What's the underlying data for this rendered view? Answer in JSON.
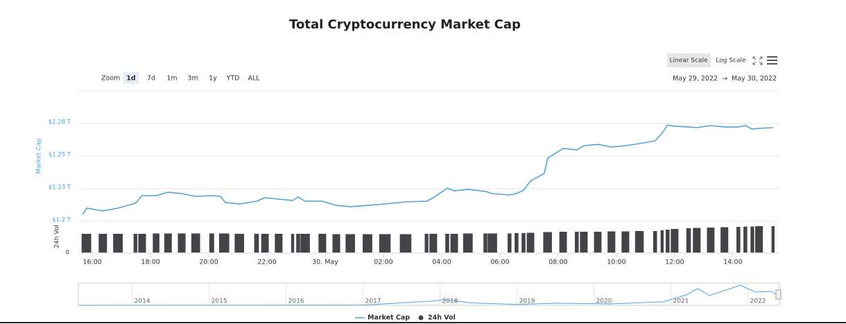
{
  "toolbar": {
    "linear": "Linear Scale",
    "log": "Log Scale",
    "zoom_label": "Zoom",
    "zoom": [
      "1d",
      "7d",
      "1m",
      "3m",
      "1y",
      "YTD",
      "ALL"
    ],
    "range_from": "May 29, 2022",
    "arrow": "→",
    "range_to": "May 30, 2022"
  },
  "chart_data": [
    {
      "type": "line",
      "title": "Total Cryptocurrency Market Cap",
      "ylabel": "Market Cap",
      "y2label": "24h Vol",
      "grid": true,
      "log_scale": false,
      "legend": "bottom",
      "x": [
        15.67,
        15.81,
        16.36,
        16.88,
        17.48,
        17.71,
        18.19,
        18.6,
        19.07,
        19.55,
        20.1,
        20.4,
        20.57,
        21.05,
        21.64,
        21.93,
        22.4,
        22.88,
        23.07,
        23.31,
        23.9,
        24.38,
        24.86,
        25.45,
        26.05,
        26.76,
        27.48,
        27.71,
        28.19,
        28.43,
        28.9,
        29.5,
        29.74,
        30.33,
        30.57,
        30.81,
        31.05,
        31.52,
        31.64,
        32.17,
        32.64,
        32.88,
        33.36,
        33.83,
        34.31,
        34.79,
        35.33,
        35.57,
        35.76,
        36.0,
        36.48,
        36.76,
        37.24,
        37.71,
        38.19,
        38.43,
        38.67,
        38.9,
        39.38
      ],
      "series": [
        {
          "name": "Market Cap",
          "color": "#4da3e0",
          "values": [
            1.2053,
            1.2101,
            1.208,
            1.2101,
            1.2138,
            1.2197,
            1.2197,
            1.2223,
            1.2213,
            1.2191,
            1.2197,
            1.2191,
            1.2144,
            1.2133,
            1.2154,
            1.2181,
            1.217,
            1.216,
            1.2186,
            1.2154,
            1.2154,
            1.2122,
            1.2112,
            1.2122,
            1.2133,
            1.2149,
            1.2154,
            1.2181,
            1.2255,
            1.2234,
            1.2245,
            1.2229,
            1.2213,
            1.2202,
            1.2213,
            1.2239,
            1.2309,
            1.2367,
            1.2484,
            1.2559,
            1.2548,
            1.258,
            1.259,
            1.2569,
            1.258,
            1.2596,
            1.2617,
            1.2676,
            1.2739,
            1.2729,
            1.2723,
            1.2718,
            1.2734,
            1.2723,
            1.2723,
            1.2734,
            1.2707,
            1.2713,
            1.2718
          ]
        },
        {
          "name": "24h Vol",
          "color": "#434348",
          "axis": "y2",
          "values": [
            27,
            27,
            27,
            27,
            27,
            27,
            27.5,
            27.5,
            27.5,
            27.5,
            27.5,
            27.5,
            27.5,
            27,
            27,
            27,
            27,
            27,
            27,
            27,
            27,
            26.5,
            26.5,
            26.5,
            26.5,
            26.5,
            27,
            27,
            27,
            27,
            27.5,
            27.5,
            27.5,
            27.5,
            28,
            28,
            28.5,
            29,
            29.5,
            30,
            30,
            30,
            30,
            30.5,
            30.5,
            31,
            31,
            32,
            33,
            34,
            35,
            35.5,
            36,
            36.5,
            37,
            37.5,
            37.5,
            38,
            38
          ]
        }
      ],
      "xlim": [
        15.52,
        39.6
      ],
      "xticks": [
        {
          "value": 16,
          "label": "16:00"
        },
        {
          "value": 18,
          "label": "18:00"
        },
        {
          "value": 20,
          "label": "20:00"
        },
        {
          "value": 22,
          "label": "22:00"
        },
        {
          "value": 24,
          "label": "30. May"
        },
        {
          "value": 26,
          "label": "02:00"
        },
        {
          "value": 28,
          "label": "04:00"
        },
        {
          "value": 30,
          "label": "06:00"
        },
        {
          "value": 32,
          "label": "08:00"
        },
        {
          "value": 34,
          "label": "10:00"
        },
        {
          "value": 36,
          "label": "12:00"
        },
        {
          "value": 38,
          "label": "14:00"
        }
      ],
      "ylim": [
        1.2,
        1.3
      ],
      "yticks": [
        {
          "value": 1.2,
          "label": "$1.2 T"
        },
        {
          "value": 1.225,
          "label": "$1.23 T"
        },
        {
          "value": 1.25,
          "label": "$1.25 T"
        },
        {
          "value": 1.275,
          "label": "$1.28 T"
        }
      ],
      "y2lim": [
        0,
        45
      ],
      "y2ticks": [
        0
      ]
    },
    {
      "type": "line",
      "color": "#4da3e0",
      "x": [
        2013.3,
        2017.0,
        2017.9,
        2018.05,
        2018.4,
        2019.0,
        2019.5,
        2020.2,
        2020.9,
        2021.2,
        2021.35,
        2021.5,
        2021.8,
        2021.9,
        2022.1,
        2022.3,
        2022.41
      ],
      "values": [
        0.0,
        0.02,
        0.6,
        0.8,
        0.35,
        0.12,
        0.3,
        0.2,
        0.5,
        1.5,
        2.4,
        1.4,
        2.5,
        2.9,
        1.9,
        2.0,
        1.3
      ],
      "xlim": [
        2013.3,
        2022.41
      ],
      "ylim": [
        0,
        3
      ],
      "xticks": [
        2014,
        2015,
        2016,
        2017,
        2018,
        2019,
        2020,
        2021,
        2022
      ]
    }
  ]
}
